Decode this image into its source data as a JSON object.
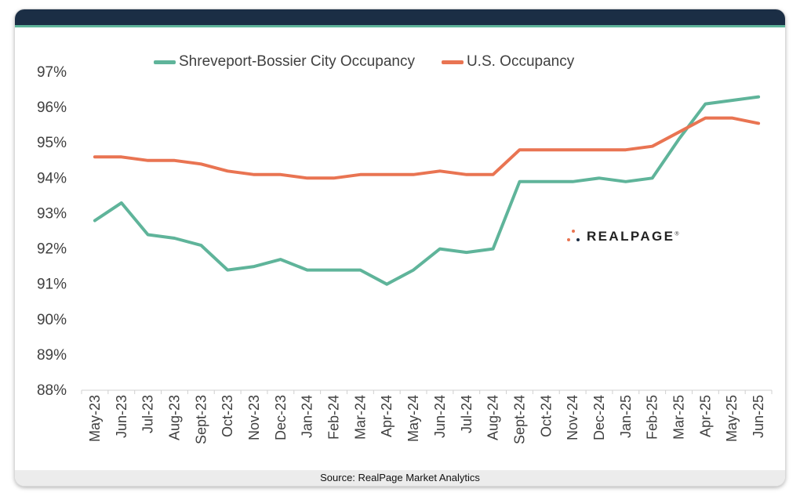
{
  "footer": {
    "source": "Source: RealPage Market Analytics"
  },
  "logo": {
    "text": "REALPAGE",
    "mark": "realpage-dots-logo"
  },
  "colors": {
    "topbar": "#1b2e45",
    "accent": "#5fb49a",
    "local": "#5fb49a",
    "us": "#e97452"
  },
  "chart_data": {
    "type": "line",
    "title": "",
    "xlabel": "",
    "ylabel": "",
    "categories": [
      "May-23",
      "Jun-23",
      "Jul-23",
      "Aug-23",
      "Sept-23",
      "Oct-23",
      "Nov-23",
      "Dec-23",
      "Jan-24",
      "Feb-24",
      "Mar-24",
      "Apr-24",
      "May-24",
      "Jun-24",
      "Jul-24",
      "Aug-24",
      "Sept-24",
      "Oct-24",
      "Nov-24",
      "Dec-24",
      "Jan-25",
      "Feb-25",
      "Mar-25",
      "Apr-25",
      "May-25",
      "Jun-25"
    ],
    "yticks": [
      "88%",
      "89%",
      "90%",
      "91%",
      "92%",
      "93%",
      "94%",
      "95%",
      "96%",
      "97%"
    ],
    "ylim": [
      88,
      97
    ],
    "grid": false,
    "legend_position": "top",
    "series": [
      {
        "name": "Shreveport-Bossier City Occupancy",
        "color": "#5fb49a",
        "values": [
          92.8,
          93.3,
          92.4,
          92.3,
          92.1,
          91.4,
          91.5,
          91.7,
          91.4,
          91.4,
          91.4,
          91.0,
          91.4,
          92.0,
          91.9,
          92.0,
          93.9,
          93.9,
          93.9,
          94.0,
          93.9,
          94.0,
          95.1,
          96.1,
          96.2,
          96.3
        ]
      },
      {
        "name": "U.S. Occupancy",
        "color": "#e97452",
        "values": [
          94.6,
          94.6,
          94.5,
          94.5,
          94.4,
          94.2,
          94.1,
          94.1,
          94.0,
          94.0,
          94.1,
          94.1,
          94.1,
          94.2,
          94.1,
          94.1,
          94.8,
          94.8,
          94.8,
          94.8,
          94.8,
          94.9,
          95.3,
          95.7,
          95.7,
          95.55
        ]
      }
    ]
  }
}
